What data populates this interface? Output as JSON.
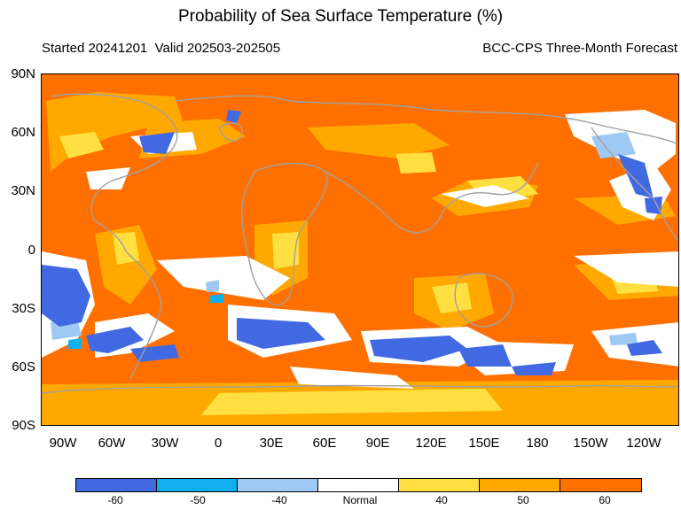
{
  "header": {
    "title": "Probability of Sea Surface Temperature (%)",
    "left_subtitle": "Started 20241201  Valid 202503-202505",
    "right_subtitle": "BCC-CPS Three-Month Forecast"
  },
  "axes": {
    "lat_labels": [
      "90N",
      "60N",
      "30N",
      "0",
      "30S",
      "60S",
      "90S"
    ],
    "lon_labels": [
      "90W",
      "60W",
      "30W",
      "0",
      "30E",
      "60E",
      "90E",
      "120E",
      "150E",
      "180",
      "150W",
      "120W"
    ]
  },
  "colors": {
    "ocean_warm": "#ff7000",
    "light_warm": "#ffa800",
    "yellow": "#ffe040",
    "normal": "#ffffff",
    "cool_light": "#9ec9f5",
    "cool_mid": "#10b0f0",
    "cool_strong": "#4169e1",
    "coast": "#a0a0a0"
  },
  "colorbar": {
    "segments": [
      {
        "color": "#4169e1"
      },
      {
        "color": "#10b0f0"
      },
      {
        "color": "#9ec9f5"
      },
      {
        "color": "#ffffff"
      },
      {
        "color": "#ffe040"
      },
      {
        "color": "#ffa800"
      },
      {
        "color": "#ff7000"
      }
    ],
    "labels": [
      "-60",
      "-50",
      "-40",
      "Normal",
      "40",
      "50",
      "60"
    ]
  }
}
